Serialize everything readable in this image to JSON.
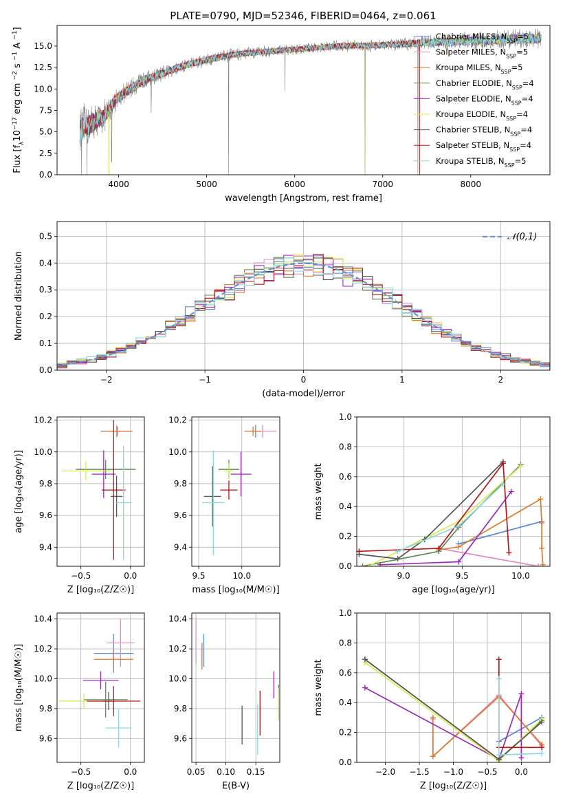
{
  "figure_title": "PLATE=0790, MJD=52346, FIBERID=0464, z=0.061",
  "models": [
    {
      "label": "Chabrier MILES, N",
      "sub": "SSP",
      "suffix": "=5",
      "color": "#5b87d6"
    },
    {
      "label": "Salpeter MILES, N",
      "sub": "SSP",
      "suffix": "=5",
      "color": "#e08bc7"
    },
    {
      "label": "Kroupa MILES, N",
      "sub": "SSP",
      "suffix": "=5",
      "color": "#e07a2c"
    },
    {
      "label": "Chabrier ELODIE, N",
      "sub": "SSP",
      "suffix": "=4",
      "color": "#5f8a55"
    },
    {
      "label": "Salpeter ELODIE, N",
      "sub": "SSP",
      "suffix": "=4",
      "color": "#9a2bb5"
    },
    {
      "label": "Kroupa ELODIE, N",
      "sub": "SSP",
      "suffix": "=4",
      "color": "#d6ea55"
    },
    {
      "label": "Chabrier STELIB, N",
      "sub": "SSP",
      "suffix": "=4",
      "color": "#555555"
    },
    {
      "label": "Salpeter STELIB, N",
      "sub": "SSP",
      "suffix": "=4",
      "color": "#b3171c"
    },
    {
      "label": "Kroupa STELIB, N",
      "sub": "SSP",
      "suffix": "=5",
      "color": "#8fd8df"
    }
  ],
  "chart_data": [
    {
      "id": "spectrum",
      "type": "line",
      "xlabel": "wavelength [Angstrom, rest frame]",
      "ylabel_parts": [
        "Flux [f",
        "λ",
        "10",
        "−17",
        "erg cm",
        "−2",
        "s",
        "−1",
        "A",
        "−1",
        "]"
      ],
      "xlim": [
        3300,
        8900
      ],
      "ylim": [
        0,
        17.4
      ],
      "xticks": [
        4000,
        5000,
        6000,
        7000,
        8000
      ],
      "yticks": [
        0.0,
        2.5,
        5.0,
        7.5,
        10.0,
        12.5,
        15.0
      ],
      "ytick_labels": [
        "0.0",
        "2.5",
        "5.0",
        "7.5",
        "10.0",
        "12.5",
        "15.0"
      ],
      "grid": false,
      "legend": "right",
      "continuum": [
        [
          3560,
          5.2
        ],
        [
          3700,
          6.0
        ],
        [
          3850,
          6.9
        ],
        [
          3950,
          8.6
        ],
        [
          4100,
          9.8
        ],
        [
          4300,
          11.1
        ],
        [
          4500,
          11.8
        ],
        [
          4700,
          12.6
        ],
        [
          5000,
          13.4
        ],
        [
          5300,
          14.0
        ],
        [
          5600,
          14.3
        ],
        [
          6000,
          14.6
        ],
        [
          6500,
          15.0
        ],
        [
          7000,
          15.1
        ],
        [
          7500,
          15.4
        ],
        [
          8000,
          15.6
        ],
        [
          8500,
          15.8
        ],
        [
          8800,
          15.9
        ]
      ],
      "noise_amplitude": [
        [
          3560,
          3.2
        ],
        [
          4000,
          1.4
        ],
        [
          4500,
          1.0
        ],
        [
          6000,
          0.7
        ],
        [
          7000,
          0.8
        ],
        [
          7500,
          1.0
        ],
        [
          8000,
          1.2
        ],
        [
          8800,
          1.3
        ]
      ],
      "spikes": [
        [
          3580,
          0
        ],
        [
          3640,
          0
        ],
        [
          3890,
          0
        ],
        [
          3920,
          1.5
        ],
        [
          4370,
          7.2
        ],
        [
          5250,
          0
        ],
        [
          5890,
          9.8
        ],
        [
          6800,
          0
        ],
        [
          7400,
          0
        ]
      ]
    },
    {
      "id": "residuals",
      "type": "step",
      "xlabel": "(data-model)/error",
      "ylabel": "Normed distribution",
      "xlim": [
        -2.5,
        2.5
      ],
      "ylim": [
        0,
        0.555
      ],
      "xticks": [
        -2,
        -1,
        0,
        1,
        2
      ],
      "xtick_labels": [
        "−2",
        "−1",
        "0",
        "1",
        "2"
      ],
      "yticks": [
        0.0,
        0.1,
        0.2,
        0.3,
        0.4,
        0.5
      ],
      "ytick_labels": [
        "0.0",
        "0.1",
        "0.2",
        "0.3",
        "0.4",
        "0.5"
      ],
      "grid": true,
      "legend_label": "𝒩(0,1)",
      "legend": "top-right",
      "bin_width": 0.1
    },
    {
      "id": "age-vs-Z",
      "type": "errorbar",
      "xlabel": "Z [log₁₀(Z/Z☉)]",
      "ylabel": "age  [log₁₀(age/yr)]",
      "xlim": [
        -0.74,
        0.14
      ],
      "ylim": [
        9.28,
        10.22
      ],
      "xticks": [
        -0.5,
        0.0
      ],
      "xtick_labels": [
        "−0.5",
        "0.0"
      ],
      "yticks": [
        9.4,
        9.6,
        9.8,
        10.0,
        10.2
      ],
      "ytick_labels": [
        "9.4",
        "9.6",
        "9.8",
        "10.0",
        "10.2"
      ],
      "points": [
        {
          "m": 0,
          "x": -0.14,
          "y": 10.13,
          "xe": 0.16,
          "ye": 0.03
        },
        {
          "m": 1,
          "x": -0.14,
          "y": 10.13,
          "xe": 0.1,
          "ye": 0.04
        },
        {
          "m": 2,
          "x": -0.13,
          "y": 10.13,
          "xe": 0.14,
          "ye": 0.03
        },
        {
          "m": 3,
          "x": -0.25,
          "y": 9.89,
          "xe": 0.3,
          "ye": 0.06
        },
        {
          "m": 4,
          "x": -0.27,
          "y": 9.86,
          "xe": 0.12,
          "ye": 0.15
        },
        {
          "m": 5,
          "x": -0.45,
          "y": 9.88,
          "xe": 0.25,
          "ye": 0.06
        },
        {
          "m": 6,
          "x": -0.14,
          "y": 9.72,
          "xe": 0.06,
          "ye": 0.13
        },
        {
          "m": 7,
          "x": -0.17,
          "y": 9.76,
          "xe": 0.12,
          "ye": 0.44
        },
        {
          "m": 8,
          "x": -0.07,
          "y": 9.68,
          "xe": 0.08,
          "ye": 0.36
        }
      ]
    },
    {
      "id": "age-vs-mass",
      "type": "errorbar",
      "xlabel": "mass [log₁₀(M/M☉)]",
      "ylabel": "",
      "xlim": [
        9.42,
        10.44
      ],
      "ylim": [
        9.28,
        10.22
      ],
      "xticks": [
        9.5,
        10.0
      ],
      "xtick_labels": [
        "9.5",
        "10.0"
      ],
      "yticks": [
        9.4,
        9.6,
        9.8,
        10.0,
        10.2
      ],
      "ytick_labels": [
        "9.4",
        "9.6",
        "9.8",
        "10.0",
        "10.2"
      ],
      "points": [
        {
          "m": 0,
          "x": 10.16,
          "y": 10.13,
          "xe": 0.06,
          "ye": 0.04
        },
        {
          "m": 1,
          "x": 10.24,
          "y": 10.13,
          "xe": 0.16,
          "ye": 0.04
        },
        {
          "m": 2,
          "x": 10.13,
          "y": 10.13,
          "xe": 0.1,
          "ye": 0.03
        },
        {
          "m": 3,
          "x": 9.85,
          "y": 9.89,
          "xe": 0.12,
          "ye": 0.06
        },
        {
          "m": 4,
          "x": 9.99,
          "y": 9.86,
          "xe": 0.12,
          "ye": 0.14
        },
        {
          "m": 5,
          "x": 9.85,
          "y": 9.88,
          "xe": 0.06,
          "ye": 0.05
        },
        {
          "m": 6,
          "x": 9.66,
          "y": 9.72,
          "xe": 0.1,
          "ye": 0.19
        },
        {
          "m": 7,
          "x": 9.85,
          "y": 9.76,
          "xe": 0.1,
          "ye": 0.06
        },
        {
          "m": 8,
          "x": 9.67,
          "y": 9.68,
          "xe": 0.13,
          "ye": 0.33
        }
      ]
    },
    {
      "id": "massweight-vs-age",
      "type": "line",
      "xlabel": "age  [log₁₀(age/yr)]",
      "ylabel": "mass weight",
      "xlim": [
        8.6,
        10.25
      ],
      "ylim": [
        0,
        1
      ],
      "xticks": [
        9.0,
        9.5,
        10.0
      ],
      "xtick_labels": [
        "9.0",
        "9.5",
        "10.0"
      ],
      "yticks": [
        0,
        0.2,
        0.4,
        0.6,
        0.8,
        1.0
      ],
      "ytick_labels": [
        "0.0",
        "0.2",
        "0.4",
        "0.6",
        "0.8",
        "1.0"
      ],
      "series": [
        {
          "m": 0,
          "points": [
            [
              9.47,
              0.15
            ],
            [
              10.18,
              0.3
            ]
          ]
        },
        {
          "m": 1,
          "points": [
            [
              9.3,
              0.12
            ],
            [
              10.15,
              0.0
            ]
          ]
        },
        {
          "m": 2,
          "points": [
            [
              9.3,
              0.11
            ],
            [
              9.47,
              0.13
            ],
            [
              10.17,
              0.45
            ],
            [
              10.18,
              0.29
            ],
            [
              10.18,
              0.12
            ],
            [
              10.19,
              0.01
            ]
          ]
        },
        {
          "m": 3,
          "points": [
            [
              8.65,
              0.0
            ],
            [
              9.3,
              0.1
            ],
            [
              9.47,
              0.26
            ],
            [
              10.0,
              0.68
            ]
          ]
        },
        {
          "m": 4,
          "points": [
            [
              8.8,
              0.01
            ],
            [
              9.47,
              0.03
            ],
            [
              9.92,
              0.5
            ]
          ]
        },
        {
          "m": 5,
          "points": [
            [
              8.7,
              0.0
            ],
            [
              9.47,
              0.3
            ],
            [
              10.0,
              0.67
            ]
          ]
        },
        {
          "m": 6,
          "points": [
            [
              8.62,
              0.08
            ],
            [
              8.95,
              0.05
            ],
            [
              9.18,
              0.18
            ],
            [
              9.85,
              0.7
            ]
          ]
        },
        {
          "m": 7,
          "points": [
            [
              8.62,
              0.1
            ],
            [
              9.3,
              0.12
            ],
            [
              9.85,
              0.69
            ],
            [
              9.9,
              0.09
            ]
          ]
        },
        {
          "m": 8,
          "points": [
            [
              8.95,
              0.1
            ],
            [
              9.47,
              0.27
            ],
            [
              9.85,
              0.55
            ]
          ]
        }
      ]
    },
    {
      "id": "mass-vs-Z",
      "type": "errorbar",
      "xlabel": "Z [log₁₀(Z/Z☉)]",
      "ylabel": "mass [log₁₀(M/M☉)]",
      "xlim": [
        -0.74,
        0.14
      ],
      "ylim": [
        9.44,
        10.44
      ],
      "xticks": [
        -0.5,
        0.0
      ],
      "xtick_labels": [
        "−0.5",
        "0.0"
      ],
      "yticks": [
        9.6,
        9.8,
        10.0,
        10.2,
        10.4
      ],
      "ytick_labels": [
        "9.6",
        "9.8",
        "10.0",
        "10.2",
        "10.4"
      ],
      "points": [
        {
          "m": 0,
          "x": -0.17,
          "y": 10.17,
          "xe": 0.2,
          "ye": 0.13
        },
        {
          "m": 1,
          "x": -0.1,
          "y": 10.24,
          "xe": 0.14,
          "ye": 0.16
        },
        {
          "m": 2,
          "x": -0.17,
          "y": 10.13,
          "xe": 0.2,
          "ye": 0.06
        },
        {
          "m": 3,
          "x": -0.25,
          "y": 9.86,
          "xe": 0.22,
          "ye": 0.12
        },
        {
          "m": 4,
          "x": -0.3,
          "y": 9.99,
          "xe": 0.18,
          "ye": 0.06
        },
        {
          "m": 5,
          "x": -0.47,
          "y": 9.85,
          "xe": 0.25,
          "ye": 0.05
        },
        {
          "m": 6,
          "x": -0.22,
          "y": 9.85,
          "xe": 0.07,
          "ye": 0.06
        },
        {
          "m": 7,
          "x": -0.17,
          "y": 9.85,
          "xe": 0.27,
          "ye": 0.1
        },
        {
          "m": 8,
          "x": -0.12,
          "y": 9.67,
          "xe": 0.13,
          "ye": 0.13
        }
      ]
    },
    {
      "id": "mass-vs-EBV",
      "type": "errorbar",
      "xlabel": "E(B-V)",
      "ylabel": "",
      "xlim": [
        0.043,
        0.19
      ],
      "ylim": [
        9.44,
        10.44
      ],
      "xticks": [
        0.05,
        0.1,
        0.15
      ],
      "xtick_labels": [
        "0.05",
        "0.10",
        "0.15"
      ],
      "yticks": [
        9.6,
        9.8,
        10.0,
        10.2,
        10.4
      ],
      "ytick_labels": [
        "9.6",
        "9.8",
        "10.0",
        "10.2",
        "10.4"
      ],
      "points": [
        {
          "m": 0,
          "x": 0.063,
          "y": 10.19,
          "xe": 0.0,
          "ye": 0.11
        },
        {
          "m": 1,
          "x": 0.05,
          "y": 10.25,
          "xe": 0.0,
          "ye": 0.15
        },
        {
          "m": 2,
          "x": 0.06,
          "y": 10.15,
          "xe": 0.0,
          "ye": 0.09
        },
        {
          "m": 3,
          "x": 0.188,
          "y": 9.84,
          "xe": 0.0,
          "ye": 0.12
        },
        {
          "m": 4,
          "x": 0.18,
          "y": 9.96,
          "xe": 0.0,
          "ye": 0.09
        },
        {
          "m": 5,
          "x": 0.188,
          "y": 9.83,
          "xe": 0.0,
          "ye": 0.11
        },
        {
          "m": 6,
          "x": 0.127,
          "y": 9.69,
          "xe": 0.0,
          "ye": 0.13
        },
        {
          "m": 7,
          "x": 0.157,
          "y": 9.77,
          "xe": 0.0,
          "ye": 0.15
        },
        {
          "m": 8,
          "x": 0.153,
          "y": 9.66,
          "xe": 0.0,
          "ye": 0.17
        }
      ]
    },
    {
      "id": "massweight-vs-Z",
      "type": "line",
      "xlabel": "Z [log₁₀(Z/Z☉)]",
      "ylabel": "mass weight",
      "xlim": [
        -2.42,
        0.42
      ],
      "ylim": [
        0,
        1
      ],
      "xticks": [
        -2.0,
        -1.5,
        -1.0,
        -0.5,
        0.0
      ],
      "xtick_labels": [
        "−2.0",
        "−1.5",
        "−1.0",
        "−0.5",
        "0.0"
      ],
      "yticks": [
        0,
        0.2,
        0.4,
        0.6,
        0.8,
        1.0
      ],
      "ytick_labels": [
        "0.0",
        "0.2",
        "0.4",
        "0.6",
        "0.8",
        "1.0"
      ],
      "series": [
        {
          "m": 0,
          "points": [
            [
              -0.33,
              0.14
            ],
            [
              0.3,
              0.3
            ]
          ]
        },
        {
          "m": 1,
          "points": [
            [
              -1.3,
              0.29
            ],
            [
              -1.3,
              0.04
            ],
            [
              -0.33,
              0.45
            ],
            [
              0.3,
              0.11
            ]
          ]
        },
        {
          "m": 2,
          "points": [
            [
              -1.3,
              0.3
            ],
            [
              -1.3,
              0.04
            ],
            [
              -0.33,
              0.44
            ],
            [
              0.3,
              0.12
            ]
          ]
        },
        {
          "m": 3,
          "points": [
            [
              -2.3,
              0.69
            ],
            [
              -0.33,
              0.02
            ],
            [
              0.3,
              0.28
            ]
          ]
        },
        {
          "m": 4,
          "points": [
            [
              -2.3,
              0.5
            ],
            [
              -0.33,
              0.02
            ],
            [
              0.0,
              0.46
            ],
            [
              0.0,
              0.03
            ]
          ]
        },
        {
          "m": 5,
          "points": [
            [
              -2.3,
              0.67
            ],
            [
              -0.33,
              0.01
            ],
            [
              0.3,
              0.29
            ]
          ]
        },
        {
          "m": 6,
          "points": [
            [
              -2.3,
              0.69
            ],
            [
              -0.33,
              0.02
            ],
            [
              0.3,
              0.27
            ]
          ]
        },
        {
          "m": 7,
          "points": [
            [
              -0.33,
              0.69
            ],
            [
              -0.33,
              0.1
            ],
            [
              0.3,
              0.1
            ]
          ]
        },
        {
          "m": 8,
          "points": [
            [
              -0.33,
              0.56
            ],
            [
              -0.33,
              0.05
            ],
            [
              0.3,
              0.06
            ]
          ]
        }
      ]
    }
  ]
}
